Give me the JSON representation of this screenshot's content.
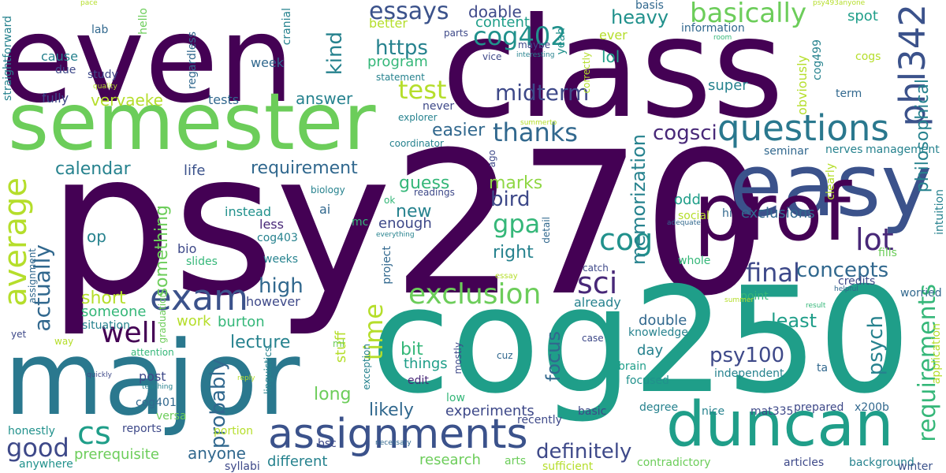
{
  "words": [
    {
      "text": "psy270",
      "color": "#440154"
    },
    {
      "text": "cog250",
      "color": "#1f9e89"
    },
    {
      "text": "class",
      "color": "#440154"
    },
    {
      "text": "even",
      "color": "#440154"
    },
    {
      "text": "major",
      "color": "#2a788e"
    },
    {
      "text": "semester",
      "color": "#6ccd5a"
    },
    {
      "text": "easy",
      "color": "#3b528b"
    },
    {
      "text": "prof",
      "color": "#440154"
    },
    {
      "text": "duncan",
      "color": "#1f9e89"
    },
    {
      "text": "assignments",
      "color": "#3b528b"
    },
    {
      "text": "exam",
      "color": "#3b528b"
    },
    {
      "text": "average",
      "color": "#b5de2b"
    },
    {
      "text": "phl342",
      "color": "#3b528b"
    },
    {
      "text": "questions",
      "color": "#2a788e"
    },
    {
      "text": "cs",
      "color": "#1f9e89"
    },
    {
      "text": "well",
      "color": "#440154"
    },
    {
      "text": "exclusion",
      "color": "#6ccd5a"
    },
    {
      "text": "basically",
      "color": "#6ccd5a"
    },
    {
      "text": "cog",
      "color": "#21918c"
    },
    {
      "text": "lot",
      "color": "#482878"
    },
    {
      "text": "sci",
      "color": "#482878"
    },
    {
      "text": "good",
      "color": "#3e4989"
    },
    {
      "text": "test",
      "color": "#b5de2b"
    },
    {
      "text": "thanks",
      "color": "#31688e"
    },
    {
      "text": "final",
      "color": "#3e4989"
    },
    {
      "text": "gpa",
      "color": "#35b779"
    },
    {
      "text": "cog402",
      "color": "#21918c"
    },
    {
      "text": "essays",
      "color": "#3b528b"
    },
    {
      "text": "time",
      "color": "#b5de2b"
    },
    {
      "text": "requirements",
      "color": "#35b779"
    },
    {
      "text": "actually",
      "color": "#31688e"
    },
    {
      "text": "midterm",
      "color": "#3e4989"
    },
    {
      "text": "psy100",
      "color": "#3e4989"
    },
    {
      "text": "cogsci",
      "color": "#482878"
    },
    {
      "text": "definitely",
      "color": "#3e4989"
    },
    {
      "text": "concepts",
      "color": "#31688e"
    },
    {
      "text": "probably",
      "color": "#31688e"
    },
    {
      "text": "psych",
      "color": "#26828e"
    },
    {
      "text": "high",
      "color": "#31688e"
    },
    {
      "text": "https",
      "color": "#26828e"
    },
    {
      "text": "bird",
      "color": "#3e4989"
    },
    {
      "text": "kind",
      "color": "#26828e"
    },
    {
      "text": "memorization",
      "color": "#26828e"
    },
    {
      "text": "focus",
      "color": "#31688e"
    },
    {
      "text": "heavy",
      "color": "#21918c"
    },
    {
      "text": "least",
      "color": "#1f9e89"
    },
    {
      "text": "calendar",
      "color": "#26828e"
    },
    {
      "text": "requirement",
      "color": "#31688e"
    },
    {
      "text": "lecture",
      "color": "#26828e"
    },
    {
      "text": "long",
      "color": "#6ccd5a"
    },
    {
      "text": "likely",
      "color": "#31688e"
    },
    {
      "text": "something",
      "color": "#6ccd5a"
    },
    {
      "text": "new",
      "color": "#26828e"
    },
    {
      "text": "marks",
      "color": "#8fd744"
    },
    {
      "text": "right",
      "color": "#26828e"
    },
    {
      "text": "short",
      "color": "#b5de2b"
    },
    {
      "text": "guess",
      "color": "#35b779"
    },
    {
      "text": "bit",
      "color": "#35b779"
    },
    {
      "text": "philosophical",
      "color": "#26828e"
    },
    {
      "text": "easier",
      "color": "#31688e"
    },
    {
      "text": "doable",
      "color": "#3e4989"
    },
    {
      "text": "lol",
      "color": "#1f9e89"
    },
    {
      "text": "op",
      "color": "#26828e"
    },
    {
      "text": "anyone",
      "color": "#31688e"
    },
    {
      "text": "vervaeke",
      "color": "#b5de2b"
    },
    {
      "text": "answer",
      "color": "#26828e"
    },
    {
      "text": "content",
      "color": "#1f9e89"
    },
    {
      "text": "super",
      "color": "#26828e"
    },
    {
      "text": "exclusions",
      "color": "#31688e"
    },
    {
      "text": "odd",
      "color": "#1f9e89"
    },
    {
      "text": "enough",
      "color": "#3e4989"
    },
    {
      "text": "spot",
      "color": "#1f9e89"
    },
    {
      "text": "life",
      "color": "#3b528b"
    },
    {
      "text": "things",
      "color": "#1f9e89"
    },
    {
      "text": "program",
      "color": "#35b779"
    },
    {
      "text": "double",
      "color": "#31688e"
    },
    {
      "text": "day",
      "color": "#26828e"
    },
    {
      "text": "experiments",
      "color": "#3e4989"
    },
    {
      "text": "research",
      "color": "#6ccd5a"
    },
    {
      "text": "different",
      "color": "#26828e"
    },
    {
      "text": "stuff",
      "color": "#b5de2b"
    },
    {
      "text": "burton",
      "color": "#35b779"
    },
    {
      "text": "someone",
      "color": "#35b779"
    },
    {
      "text": "work",
      "color": "#b5de2b"
    },
    {
      "text": "prerequisite",
      "color": "#6ccd5a"
    },
    {
      "text": "already",
      "color": "#26828e"
    },
    {
      "text": "instead",
      "color": "#21918c"
    },
    {
      "text": "ai",
      "color": "#31688e"
    },
    {
      "text": "less",
      "color": "#482878"
    },
    {
      "text": "bio",
      "color": "#3e4989"
    },
    {
      "text": "obviously",
      "color": "#b5de2b"
    },
    {
      "text": "fully",
      "color": "#3e4989"
    },
    {
      "text": "tests",
      "color": "#31688e"
    },
    {
      "text": "cause",
      "color": "#26828e"
    },
    {
      "text": "ever",
      "color": "#b5de2b"
    },
    {
      "text": "better",
      "color": "#b5de2b"
    },
    {
      "text": "week",
      "color": "#31688e"
    },
    {
      "text": "however",
      "color": "#3e4989"
    },
    {
      "text": "post",
      "color": "#3e4989"
    },
    {
      "text": "knowledge",
      "color": "#26828e"
    },
    {
      "text": "brain",
      "color": "#1f9e89"
    },
    {
      "text": "focused",
      "color": "#21918c"
    },
    {
      "text": "independent",
      "color": "#26828e"
    },
    {
      "text": "prepared",
      "color": "#3e4989"
    },
    {
      "text": "articles",
      "color": "#3e4989"
    },
    {
      "text": "mat335",
      "color": "#3e4989"
    },
    {
      "text": "nice",
      "color": "#26828e"
    },
    {
      "text": "degree",
      "color": "#26828e"
    },
    {
      "text": "x200b",
      "color": "#31688e"
    },
    {
      "text": "background",
      "color": "#26828e"
    },
    {
      "text": "winter",
      "color": "#3b528b"
    },
    {
      "text": "contradictory",
      "color": "#6ccd5a"
    },
    {
      "text": "arts",
      "color": "#6ccd5a"
    },
    {
      "text": "recently",
      "color": "#3e4989"
    },
    {
      "text": "sufficient",
      "color": "#b5de2b"
    },
    {
      "text": "basic",
      "color": "#3e4989"
    },
    {
      "text": "low",
      "color": "#35b779"
    },
    {
      "text": "edit",
      "color": "#482878"
    },
    {
      "text": "bsc",
      "color": "#3e4989"
    },
    {
      "text": "syllabi",
      "color": "#3e4989"
    },
    {
      "text": "anywhere",
      "color": "#21918c"
    },
    {
      "text": "honestly",
      "color": "#21918c"
    },
    {
      "text": "reports",
      "color": "#3e4989"
    },
    {
      "text": "portion",
      "color": "#b5de2b"
    },
    {
      "text": "cog401",
      "color": "#31688e"
    },
    {
      "text": "versa",
      "color": "#6ccd5a"
    },
    {
      "text": "situation",
      "color": "#26828e"
    },
    {
      "text": "slides",
      "color": "#35b779"
    },
    {
      "text": "weeks",
      "color": "#26828e"
    },
    {
      "text": "cog403",
      "color": "#26828e"
    },
    {
      "text": "mc",
      "color": "#35b779"
    },
    {
      "text": "ok",
      "color": "#35b779"
    },
    {
      "text": "readings",
      "color": "#3e4989"
    },
    {
      "text": "biology",
      "color": "#26828e"
    },
    {
      "text": "project",
      "color": "#31688e"
    },
    {
      "text": "ml",
      "color": "#6ccd5a"
    },
    {
      "text": "linguistics",
      "color": "#26828e"
    },
    {
      "text": "exception",
      "color": "#26828e"
    },
    {
      "text": "mostly",
      "color": "#3e4989"
    },
    {
      "text": "cuz",
      "color": "#31688e"
    },
    {
      "text": "case",
      "color": "#3e4989"
    },
    {
      "text": "catch",
      "color": "#3e4989"
    },
    {
      "text": "essay",
      "color": "#b5de2b"
    },
    {
      "text": "social",
      "color": "#b5de2b"
    },
    {
      "text": "whole",
      "color": "#35b779"
    },
    {
      "text": "adequate",
      "color": "#31688e"
    },
    {
      "text": "hi",
      "color": "#31688e"
    },
    {
      "text": "point",
      "color": "#35b779"
    },
    {
      "text": "summer",
      "color": "#b5de2b"
    },
    {
      "text": "result",
      "color": "#35b779"
    },
    {
      "text": "helpful",
      "color": "#31688e"
    },
    {
      "text": "worried",
      "color": "#31688e"
    },
    {
      "text": "credits",
      "color": "#3e4989"
    },
    {
      "text": "ta",
      "color": "#31688e"
    },
    {
      "text": "application",
      "color": "#b5de2b"
    },
    {
      "text": "fills",
      "color": "#6ccd5a"
    },
    {
      "text": "intuition",
      "color": "#26828e"
    },
    {
      "text": "clearly",
      "color": "#b5de2b"
    },
    {
      "text": "nerves",
      "color": "#26828e"
    },
    {
      "text": "management",
      "color": "#26828e"
    },
    {
      "text": "seminar",
      "color": "#31688e"
    },
    {
      "text": "term",
      "color": "#31688e"
    },
    {
      "text": "cogs",
      "color": "#b5de2b"
    },
    {
      "text": "cog499",
      "color": "#26828e"
    },
    {
      "text": "room",
      "color": "#35b779"
    },
    {
      "text": "information",
      "color": "#31688e"
    },
    {
      "text": "psy493anyone",
      "color": "#b5de2b"
    },
    {
      "text": "basis",
      "color": "#31688e"
    },
    {
      "text": "cranial",
      "color": "#26828e"
    },
    {
      "text": "hello",
      "color": "#6ccd5a"
    },
    {
      "text": "pace",
      "color": "#b5de2b"
    },
    {
      "text": "lab",
      "color": "#31688e"
    },
    {
      "text": "due",
      "color": "#3e4989"
    },
    {
      "text": "study",
      "color": "#3e4989"
    },
    {
      "text": "quality",
      "color": "#b5de2b"
    },
    {
      "text": "regardless",
      "color": "#31688e"
    },
    {
      "text": "straightforward",
      "color": "#26828e"
    },
    {
      "text": "parts",
      "color": "#3e4989"
    },
    {
      "text": "statement",
      "color": "#26828e"
    },
    {
      "text": "vice",
      "color": "#3e4989"
    },
    {
      "text": "interesting",
      "color": "#26828e"
    },
    {
      "text": "maybe",
      "color": "#3e4989"
    },
    {
      "text": "yeah",
      "color": "#21918c"
    },
    {
      "text": "correctly",
      "color": "#b5de2b"
    },
    {
      "text": "never",
      "color": "#3e4989"
    },
    {
      "text": "explorer",
      "color": "#26828e"
    },
    {
      "text": "coordinator",
      "color": "#26828e"
    },
    {
      "text": "summerto",
      "color": "#b5de2b"
    },
    {
      "text": "ago",
      "color": "#3e4989"
    },
    {
      "text": "detail",
      "color": "#31688e"
    },
    {
      "text": "everything",
      "color": "#26828e"
    },
    {
      "text": "graduation",
      "color": "#6ccd5a"
    },
    {
      "text": "assignment",
      "color": "#31688e"
    },
    {
      "text": "yet",
      "color": "#3e4989"
    },
    {
      "text": "way",
      "color": "#b5de2b"
    },
    {
      "text": "attention",
      "color": "#35b779"
    },
    {
      "text": "quickly",
      "color": "#3e4989"
    },
    {
      "text": "teaching",
      "color": "#26828e"
    },
    {
      "text": "reply",
      "color": "#b5de2b"
    },
    {
      "text": "necessary",
      "color": "#31688e"
    }
  ]
}
